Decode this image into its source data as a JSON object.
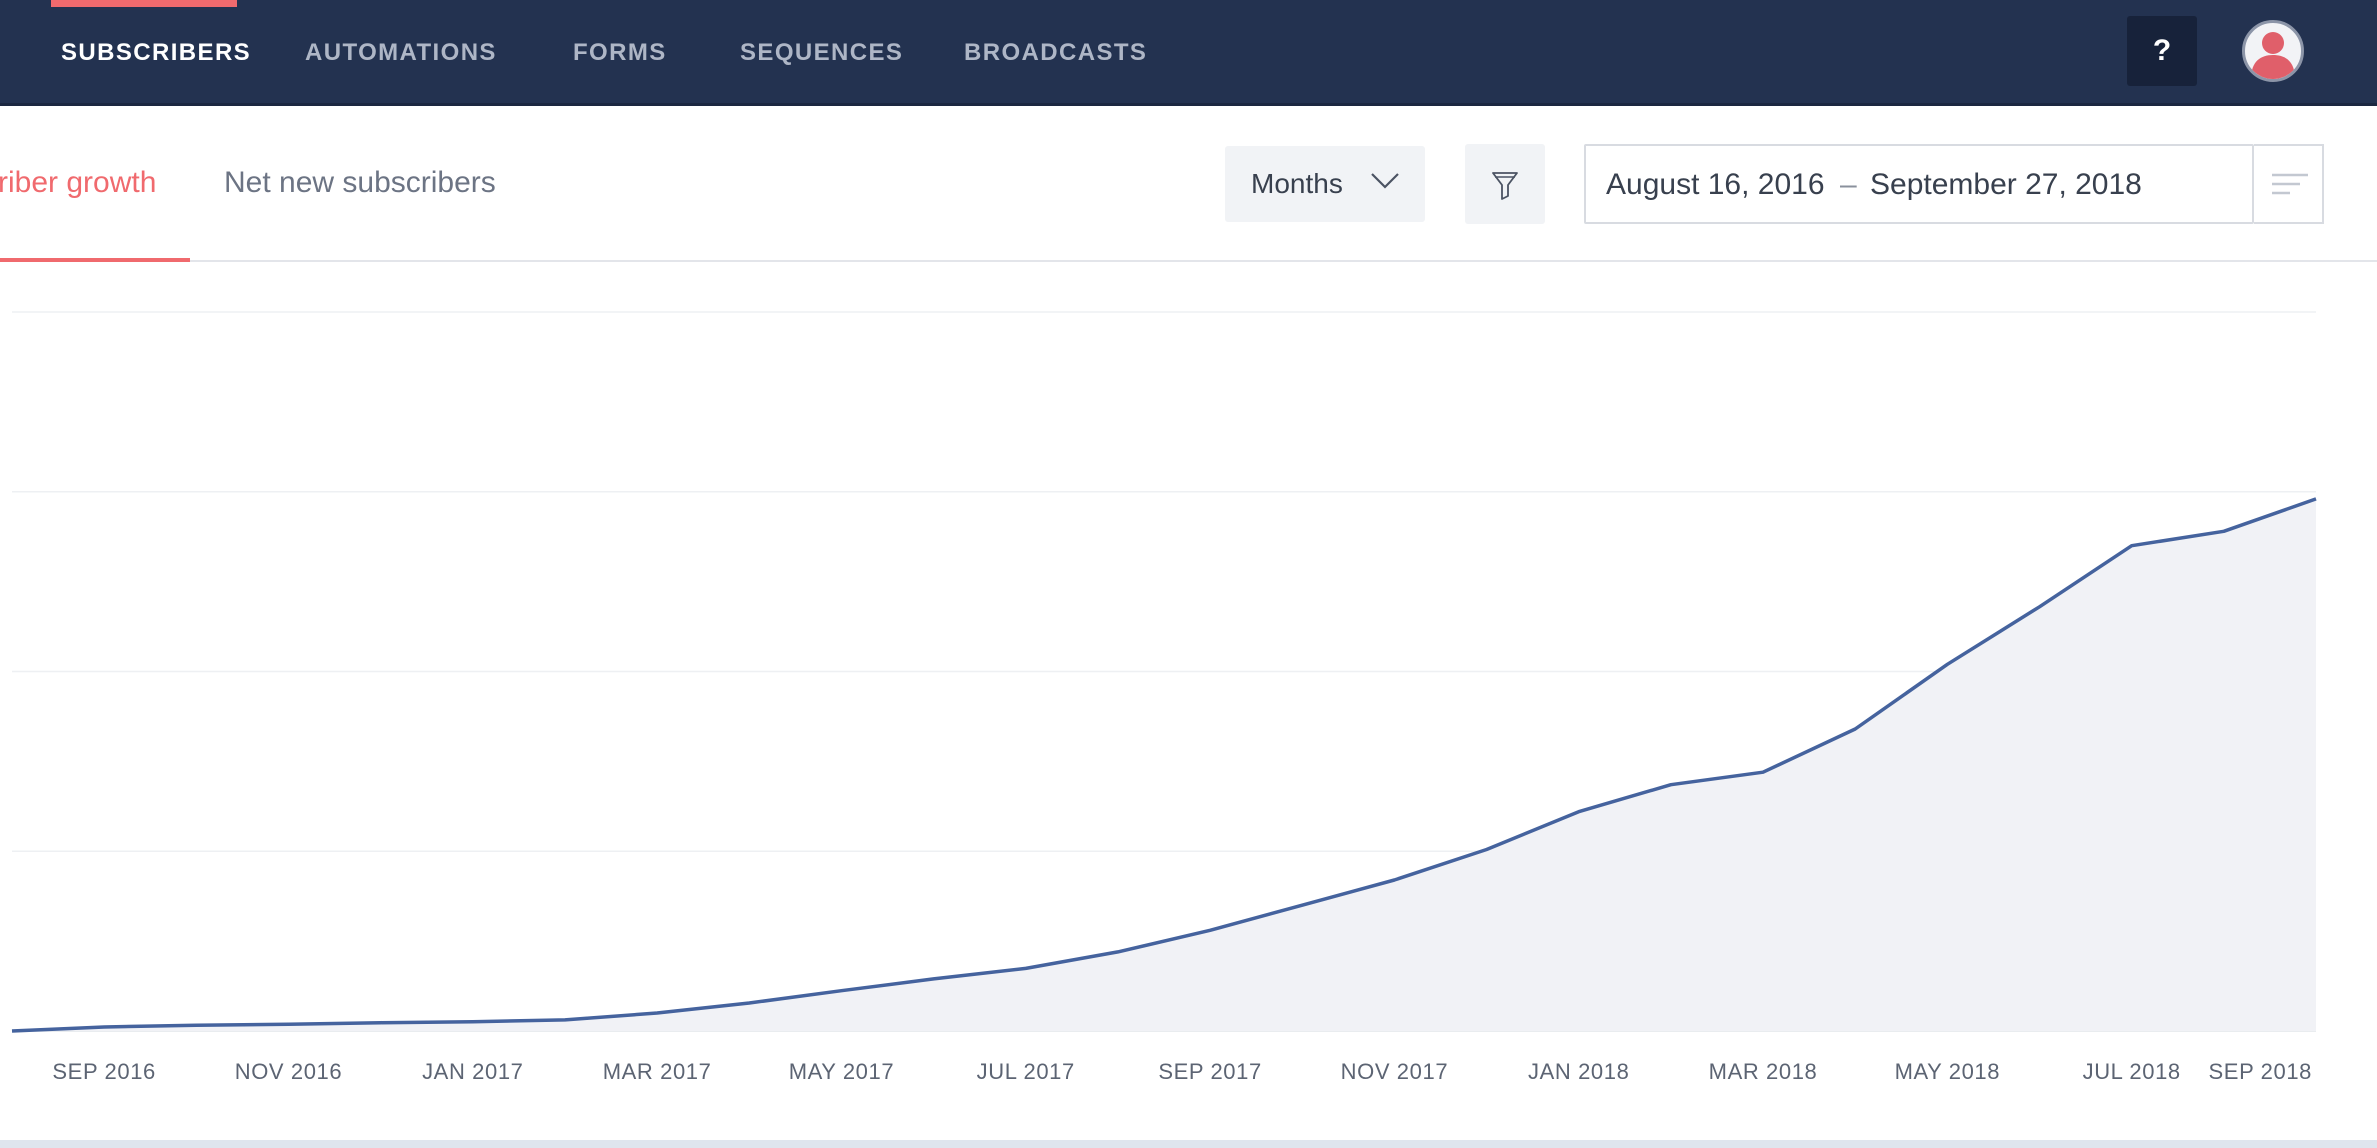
{
  "nav": {
    "items": [
      {
        "label": "SUBSCRIBERS",
        "active": true
      },
      {
        "label": "AUTOMATIONS",
        "active": false
      },
      {
        "label": "FORMS",
        "active": false
      },
      {
        "label": "SEQUENCES",
        "active": false
      },
      {
        "label": "BROADCASTS",
        "active": false
      }
    ],
    "help_label": "?",
    "avatar_icon": "user-avatar-icon"
  },
  "tabs": [
    {
      "label": "riber growth",
      "active": true
    },
    {
      "label": "Net new subscribers",
      "active": false
    }
  ],
  "controls": {
    "interval_selected": "Months",
    "filter_icon": "funnel-icon",
    "date_start": "August 16, 2016",
    "date_separator": "–",
    "date_end": "September 27, 2018",
    "date_menu_icon": "lines-icon"
  },
  "colors": {
    "accent": "#f06a6e",
    "nav_bg": "#233250",
    "line": "#45639e",
    "area_fill": "#f1f2f6",
    "grid": "#eef0f3"
  },
  "chart_data": {
    "type": "area",
    "title": "",
    "xlabel": "",
    "ylabel": "",
    "x": [
      "Aug 2016",
      "Sep 2016",
      "Oct 2016",
      "Nov 2016",
      "Dec 2016",
      "Jan 2017",
      "Feb 2017",
      "Mar 2017",
      "Apr 2017",
      "May 2017",
      "Jun 2017",
      "Jul 2017",
      "Aug 2017",
      "Sep 2017",
      "Oct 2017",
      "Nov 2017",
      "Dec 2017",
      "Jan 2018",
      "Feb 2018",
      "Mar 2018",
      "Apr 2018",
      "May 2018",
      "Jun 2018",
      "Jul 2018",
      "Aug 2018",
      "Sep 2018"
    ],
    "values": [
      0,
      1.1,
      1.6,
      1.9,
      2.3,
      2.6,
      3.1,
      5.0,
      7.8,
      11.2,
      14.5,
      17.4,
      22.0,
      28.0,
      35.0,
      42.0,
      50.5,
      61.0,
      68.5,
      72.0,
      84.0,
      102.0,
      118.0,
      135.0,
      139.0,
      148.0
    ],
    "ylim": [
      0,
      200
    ],
    "y_gridlines": [
      0,
      50,
      100,
      150,
      200
    ],
    "tick_labels": [
      "SEP 2016",
      "NOV 2016",
      "JAN 2017",
      "MAR 2017",
      "MAY 2017",
      "JUL 2017",
      "SEP 2017",
      "NOV 2017",
      "JAN 2018",
      "MAR 2018",
      "MAY 2018",
      "JUL 2018",
      "SEP 2018"
    ],
    "tick_indices": [
      1,
      3,
      5,
      7,
      9,
      11,
      13,
      15,
      17,
      19,
      21,
      23,
      25
    ],
    "grid": true,
    "legend": "none"
  }
}
